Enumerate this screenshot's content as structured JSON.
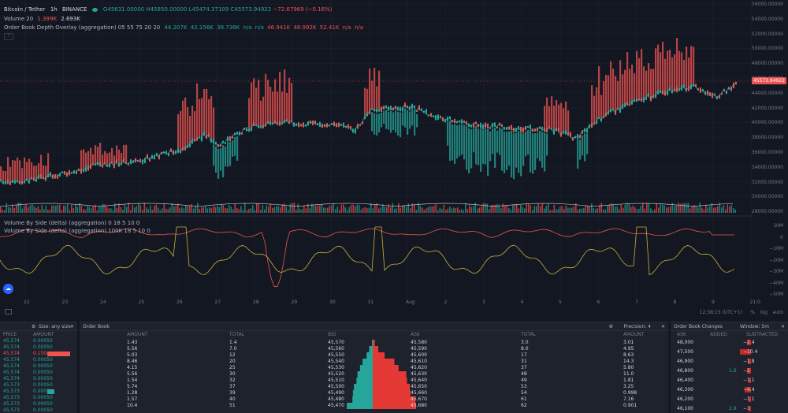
{
  "legend": {
    "symbol": "Bitcoin / Tether",
    "interval": "1h",
    "exchange": "BINANCE",
    "open": "O45631.00000",
    "high": "H45850.00000",
    "low": "L45474.37109",
    "close": "C45573.94922",
    "change": "−72.67969 (−0.16%)",
    "volume_label": "Volume 20",
    "volume_1": "1.399K",
    "volume_2": "2.693K",
    "obdo_label": "Order Book Depth Overlay (aggregation) 05 55 75 20 20",
    "obdo_values": [
      "44.207K",
      "42.156K",
      "38.738K",
      "n/a",
      "n/a"
    ],
    "obdo_values_red": [
      "46.941K",
      "48.992K",
      "52.41K",
      "n/a",
      "n/a"
    ],
    "vbs1_label": "Volume By Side (delta) (aggregation) 0 18 5 10 0",
    "vbs2_label": "Volume By Side (delta) (aggregation) 100K 18 5 10 0"
  },
  "price_axis": [
    "56000.00000",
    "54000.00000",
    "52000.00000",
    "50000.00000",
    "48000.00000",
    "46000.00000",
    "44000.00000",
    "42000.00000",
    "40000.00000",
    "38000.00000",
    "36000.00000",
    "34000.00000",
    "32000.00000",
    "30000.00000",
    "28000.00000"
  ],
  "current_price": "45573.94922",
  "delta_axis": [
    "10M",
    "0",
    "−10M",
    "−20M",
    "−30M",
    "−40M",
    "−50M"
  ],
  "time_axis": [
    "22",
    "23",
    "24",
    "25",
    "26",
    "27",
    "28",
    "29",
    "30",
    "31",
    "Aug",
    "2",
    "3",
    "4",
    "5",
    "6",
    "7",
    "8",
    "9",
    "21:0"
  ],
  "bottom_bar": {
    "clock": "12:38:15 (UTC+1)",
    "percent": "%",
    "log": "log",
    "auto": "auto"
  },
  "colors": {
    "bull": "#26a69a",
    "bear": "#ef5350",
    "bg": "#131722",
    "panel": "#1e222d",
    "delta_yellow": "#c9b037"
  },
  "left_panel": {
    "title": "Size: any size",
    "headers": [
      "PRICE",
      "AMOUNT"
    ],
    "rows": [
      {
        "price": "45,574",
        "amount": "0.00050",
        "side": "g"
      },
      {
        "price": "45,574",
        "amount": "0.00050",
        "side": "g"
      },
      {
        "price": "45,574",
        "amount": "0.150",
        "side": "r"
      },
      {
        "price": "45,574",
        "amount": "0.00050",
        "side": "g"
      },
      {
        "price": "45,574",
        "amount": "0.00050",
        "side": "g"
      },
      {
        "price": "45,574",
        "amount": "0.00050",
        "side": "g"
      },
      {
        "price": "45,574",
        "amount": "0.00050",
        "side": "g"
      },
      {
        "price": "45,573",
        "amount": "0.00050",
        "side": "g"
      },
      {
        "price": "45,573",
        "amount": "0.00050",
        "side": "g"
      },
      {
        "price": "45,573",
        "amount": "0.00050",
        "side": "g"
      },
      {
        "price": "45,573",
        "amount": "0.00050",
        "side": "g"
      },
      {
        "price": "45,573",
        "amount": "0.00050",
        "side": "g"
      }
    ]
  },
  "order_book": {
    "title": "Order Book",
    "precision": "Precision: 4",
    "headers": [
      "AMOUNT",
      "TOTAL",
      "BID",
      "ASK",
      "TOTAL",
      "AMOUNT"
    ],
    "rows": [
      [
        "1.43",
        "1.4",
        "45,570",
        "45,580",
        "3.0",
        "3.01"
      ],
      [
        "5.56",
        "7.0",
        "45,560",
        "45,590",
        "8.0",
        "4.95"
      ],
      [
        "5.03",
        "12",
        "45,550",
        "45,600",
        "17",
        "8.63"
      ],
      [
        "8.46",
        "20",
        "45,540",
        "45,610",
        "31",
        "14.3"
      ],
      [
        "4.15",
        "25",
        "45,530",
        "45,620",
        "37",
        "5.80"
      ],
      [
        "5.56",
        "30",
        "45,520",
        "45,630",
        "48",
        "11.0"
      ],
      [
        "1.54",
        "32",
        "45,510",
        "45,640",
        "49",
        "1.81"
      ],
      [
        "5.74",
        "37",
        "45,500",
        "45,650",
        "53",
        "3.25"
      ],
      [
        "1.28",
        "39",
        "45,490",
        "45,660",
        "54",
        "0.998"
      ],
      [
        "1.57",
        "40",
        "45,480",
        "45,670",
        "61",
        "7.16"
      ],
      [
        "10.4",
        "51",
        "45,470",
        "45,680",
        "62",
        "0.901"
      ]
    ]
  },
  "ob_changes": {
    "title": "Order Book Changes",
    "window": "Window: 5m",
    "headers": [
      "ASK",
      "ADDED",
      "SUBTRACTED"
    ],
    "rows": [
      {
        "price": "48,000",
        "added": "",
        "sub": "−2.4"
      },
      {
        "price": "47,500",
        "added": "",
        "sub": "−10.4"
      },
      {
        "price": "46,900",
        "added": "",
        "sub": "−1.8"
      },
      {
        "price": "46,800",
        "added": "1.6",
        "sub": "−2"
      },
      {
        "price": "46,400",
        "added": "",
        "sub": "−1.1"
      },
      {
        "price": "46,300",
        "added": "",
        "sub": "−4.4"
      },
      {
        "price": "46,200",
        "added": "",
        "sub": "−1.1"
      },
      {
        "price": "46,100",
        "added": "2.9",
        "sub": "−1"
      }
    ]
  }
}
